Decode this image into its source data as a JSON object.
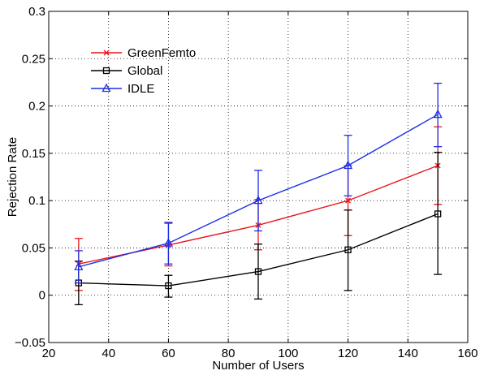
{
  "chart_data": {
    "type": "line",
    "title": "",
    "xlabel": "Number of Users",
    "ylabel": "Rejection Rate",
    "xlim": [
      20,
      160
    ],
    "ylim": [
      -0.05,
      0.3
    ],
    "xticks": [
      20,
      40,
      60,
      80,
      100,
      120,
      140,
      160
    ],
    "xtick_labels": [
      "20",
      "40",
      "60",
      "80",
      "100",
      "120",
      "140",
      "160"
    ],
    "yticks": [
      -0.05,
      0,
      0.05,
      0.1,
      0.15,
      0.2,
      0.25,
      0.3
    ],
    "ytick_labels": [
      "−0.05",
      "0",
      "0.05",
      "0.1",
      "0.15",
      "0.2",
      "0.25",
      "0.3"
    ],
    "grid": true,
    "legend_position": "top-left",
    "x": [
      30,
      60,
      90,
      120,
      150
    ],
    "series": [
      {
        "name": "GreenFemto",
        "color": "#e8141c",
        "marker": "x",
        "values": [
          0.033,
          0.053,
          0.074,
          0.1,
          0.137
        ],
        "err_low": [
          0.005,
          0.031,
          0.048,
          0.063,
          0.096
        ],
        "err_high": [
          0.06,
          0.076,
          0.101,
          0.137,
          0.178
        ]
      },
      {
        "name": "Global",
        "color": "#000000",
        "marker": "square",
        "values": [
          0.013,
          0.01,
          0.025,
          0.048,
          0.086
        ],
        "err_low": [
          -0.01,
          -0.002,
          -0.004,
          0.005,
          0.022
        ],
        "err_high": [
          0.036,
          0.021,
          0.054,
          0.09,
          0.151
        ]
      },
      {
        "name": "IDLE",
        "color": "#1a2ee6",
        "marker": "triangle",
        "values": [
          0.03,
          0.055,
          0.1,
          0.137,
          0.191
        ],
        "err_low": [
          0.013,
          0.033,
          0.068,
          0.105,
          0.157
        ],
        "err_high": [
          0.047,
          0.077,
          0.132,
          0.169,
          0.224
        ]
      }
    ]
  }
}
